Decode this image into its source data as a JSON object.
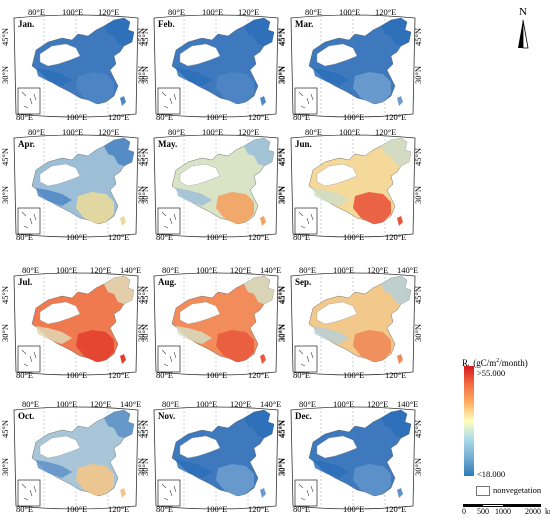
{
  "panels": [
    {
      "month": "Jan.",
      "c": [
        "#4f86c4",
        "#3e79bd",
        "#2c6fb8"
      ],
      "lon": [
        "80°E",
        "100°E",
        "120°E"
      ],
      "lonB": [
        "80°E",
        "100°E",
        "120°E"
      ],
      "lat": [
        "45°N",
        "30°N"
      ]
    },
    {
      "month": "Feb.",
      "c": [
        "#4f86c4",
        "#3e79bd",
        "#2c6fb8"
      ],
      "lon": [
        "80°E",
        "100°E",
        "120°E"
      ],
      "lonB": [
        "80°E",
        "100°E",
        "120°E"
      ],
      "lat": [
        "45°N",
        "30°N"
      ]
    },
    {
      "month": "Mar.",
      "c": [
        "#6d9cce",
        "#3e79bd",
        "#2c6fb8"
      ],
      "lon": [
        "80°E",
        "100°E",
        "120°E"
      ],
      "lonB": [
        "80°E",
        "100°E",
        "120°E"
      ],
      "lat": [
        "45°N",
        "30°N"
      ]
    },
    {
      "month": "Apr.",
      "c": [
        "#e9d99a",
        "#9cbfd7",
        "#4f86c4"
      ],
      "lon": [
        "80°E",
        "100°E",
        "120°E"
      ],
      "lonB": [
        "80°E",
        "100°E",
        "120°E"
      ],
      "lat": [
        "45°N",
        "30°N"
      ]
    },
    {
      "month": "May.",
      "c": [
        "#f3a261",
        "#d9e3c5",
        "#9cbfd7"
      ],
      "lon": [
        "80°E",
        "100°E",
        "120°E"
      ],
      "lonB": [
        "80°E",
        "100°E",
        "120°E"
      ],
      "lat": [
        "45°N",
        "30°N"
      ]
    },
    {
      "month": "Jun.",
      "c": [
        "#e8553b",
        "#f5d99a",
        "#cfdcc6"
      ],
      "lon": [
        "80°E",
        "100°E",
        "120°E"
      ],
      "lonB": [
        "80°E",
        "100°E",
        "120°E"
      ],
      "lat": [
        "45°N",
        "30°N"
      ]
    },
    {
      "month": "Jul.",
      "c": [
        "#e2402f",
        "#f07a50",
        "#e2d7b4"
      ],
      "lon": [
        "80°E",
        "100°E",
        "120°E",
        "140°E"
      ],
      "lonB": [
        "80°E",
        "100°E",
        "120°E"
      ],
      "lat": [
        "45°N",
        "30°N"
      ]
    },
    {
      "month": "Aug.",
      "c": [
        "#e95a3d",
        "#f28c5a",
        "#d7dcc1"
      ],
      "lon": [
        "80°E",
        "100°E",
        "120°E",
        "140°E"
      ],
      "lonB": [
        "80°E",
        "100°E",
        "120°E"
      ],
      "lat": [
        "45°N",
        "30°N"
      ]
    },
    {
      "month": "Sep.",
      "c": [
        "#ef8a58",
        "#f2c98a",
        "#b9cfd4"
      ],
      "lon": [
        "80°E",
        "100°E",
        "120°E",
        "140°E"
      ],
      "lonB": [
        "80°E",
        "100°E",
        "120°E"
      ],
      "lat": [
        "45°N",
        "30°N"
      ]
    },
    {
      "month": "Oct.",
      "c": [
        "#f3c58a",
        "#a9c6d8",
        "#5f92c9"
      ],
      "lon": [
        "80°E",
        "100°E",
        "120°E",
        "140°E"
      ],
      "lonB": [
        "80°E",
        "100°E",
        "120°E"
      ],
      "lat": [
        "45°N",
        "30°N"
      ]
    },
    {
      "month": "Nov.",
      "c": [
        "#6d9cce",
        "#3e79bd",
        "#2c6fb8"
      ],
      "lon": [
        "80°E",
        "100°E",
        "120°E",
        "140°E"
      ],
      "lonB": [
        "80°E",
        "100°E",
        "120°E"
      ],
      "lat": [
        "45°N",
        "30°N"
      ]
    },
    {
      "month": "Dec.",
      "c": [
        "#5f92c9",
        "#3e79bd",
        "#2c6fb8"
      ],
      "lon": [
        "80°E",
        "100°E",
        "120°E",
        "140°E"
      ],
      "lonB": [
        "80°E",
        "100°E",
        "120°E"
      ],
      "lat": [
        "45°N",
        "30°N"
      ]
    }
  ],
  "north_label": "N",
  "legend": {
    "title": "R",
    "title_sub": "h",
    "title_unit": " (gC/m",
    "title_sup": "2",
    "title_end": "/month)",
    "high": ">55.000",
    "low": "<18.000",
    "nonveg": "nonvegetation",
    "colors": [
      "#d7191c",
      "#f46d43",
      "#fdae61",
      "#ffffbf",
      "#abd9e9",
      "#74add1",
      "#2c7bb6"
    ]
  },
  "scale": {
    "labels": [
      "0",
      "500",
      "1000",
      "2000"
    ],
    "unit": "km"
  }
}
